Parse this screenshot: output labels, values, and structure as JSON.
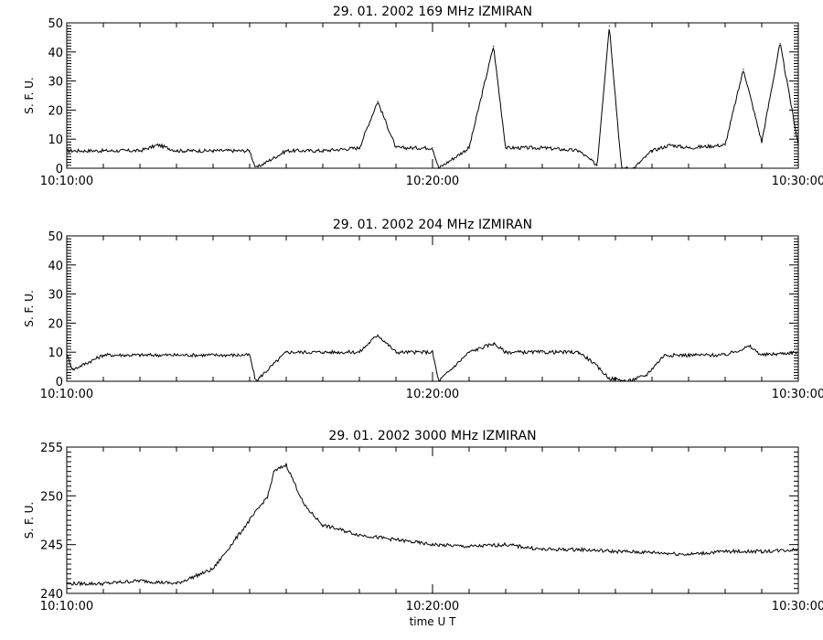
{
  "chart_data": [
    {
      "type": "line",
      "title": "29.  01.  2002    169 MHz    IZMIRAN",
      "ylabel": "S. F. U.",
      "xlabel": "",
      "xlim": [
        "10:10:00",
        "10:30:00"
      ],
      "ylim": [
        0,
        50
      ],
      "x_ticks": [
        "10:10:00",
        "10:20:00",
        "10:30:00"
      ],
      "y_ticks": [
        0,
        10,
        20,
        30,
        40,
        50
      ],
      "grid": false,
      "series": [
        {
          "x": [
            "10:10:00",
            "10:11:00",
            "10:12:00",
            "10:12:30",
            "10:13:00",
            "10:14:00",
            "10:15:00",
            "10:15:10",
            "10:16:00",
            "10:17:00",
            "10:18:00",
            "10:18:30",
            "10:19:00",
            "10:20:00",
            "10:20:10",
            "10:21:00",
            "10:21:40",
            "10:22:00",
            "10:23:00",
            "10:24:00",
            "10:24:30",
            "10:24:50",
            "10:25:10",
            "10:25:30",
            "10:26:00",
            "10:26:30",
            "10:27:00",
            "10:28:00",
            "10:28:30",
            "10:29:00",
            "10:29:30",
            "10:30:00"
          ],
          "y": [
            6,
            6,
            6,
            8,
            6,
            6,
            6,
            0,
            6,
            6,
            7,
            23,
            7,
            7,
            0,
            7,
            42,
            7,
            7,
            6,
            1,
            49,
            0,
            0,
            6,
            8,
            7,
            8,
            34,
            9,
            43,
            8
          ]
        }
      ]
    },
    {
      "type": "line",
      "title": "29.  01.  2002    204 MHz    IZMIRAN",
      "ylabel": "S. F. U.",
      "xlabel": "",
      "xlim": [
        "10:10:00",
        "10:30:00"
      ],
      "ylim": [
        0,
        50
      ],
      "x_ticks": [
        "10:10:00",
        "10:20:00",
        "10:30:00"
      ],
      "y_ticks": [
        0,
        10,
        20,
        30,
        40,
        50
      ],
      "grid": false,
      "series": [
        {
          "x": [
            "10:10:00",
            "10:10:10",
            "10:11:00",
            "10:12:00",
            "10:13:00",
            "10:15:00",
            "10:15:10",
            "10:16:00",
            "10:17:00",
            "10:18:00",
            "10:18:30",
            "10:19:00",
            "10:20:00",
            "10:20:10",
            "10:21:00",
            "10:21:40",
            "10:22:00",
            "10:23:00",
            "10:24:00",
            "10:24:20",
            "10:24:50",
            "10:25:20",
            "10:25:50",
            "10:26:20",
            "10:27:00",
            "10:28:00",
            "10:28:40",
            "10:29:00",
            "10:30:00"
          ],
          "y": [
            9,
            4,
            9,
            9,
            9,
            9,
            0,
            10,
            10,
            10,
            16,
            10,
            10,
            0,
            10,
            13,
            10,
            10,
            10,
            7,
            1,
            0,
            2,
            9,
            9,
            9,
            12,
            9,
            10
          ]
        }
      ]
    },
    {
      "type": "line",
      "title": "29.  01.  2002    3000 MHz    IZMIRAN",
      "ylabel": "S. F. U.",
      "xlabel": "time   U T",
      "xlim": [
        "10:10:00",
        "10:30:00"
      ],
      "ylim": [
        240,
        255
      ],
      "x_ticks": [
        "10:10:00",
        "10:20:00",
        "10:30:00"
      ],
      "y_ticks": [
        240,
        245,
        250,
        255
      ],
      "grid": false,
      "series": [
        {
          "x": [
            "10:10:00",
            "10:11:00",
            "10:12:00",
            "10:13:00",
            "10:14:00",
            "10:14:30",
            "10:15:00",
            "10:15:30",
            "10:15:40",
            "10:16:00",
            "10:16:30",
            "10:17:00",
            "10:18:00",
            "10:19:00",
            "10:20:00",
            "10:21:00",
            "10:22:00",
            "10:23:00",
            "10:24:00",
            "10:25:00",
            "10:26:00",
            "10:27:00",
            "10:28:00",
            "10:29:00",
            "10:30:00"
          ],
          "y": [
            241,
            241,
            241.3,
            241,
            242.5,
            245,
            247.5,
            250,
            252.5,
            253.2,
            249,
            247,
            246,
            245.5,
            245,
            244.8,
            245,
            244.5,
            244.5,
            244.3,
            244.2,
            244,
            244.3,
            244.3,
            244.5
          ]
        }
      ]
    }
  ]
}
